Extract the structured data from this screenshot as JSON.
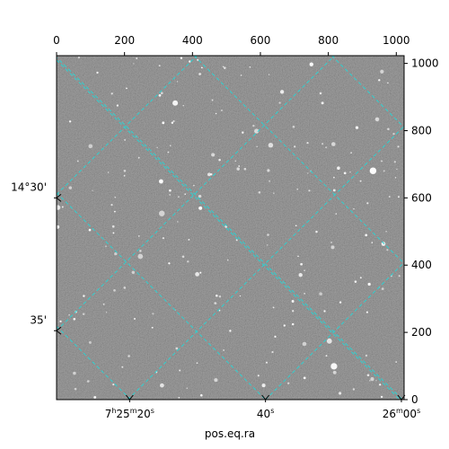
{
  "chart_data": {
    "type": "sky-image",
    "image": {
      "kind": "astronomical-grayscale-star-field",
      "background": "#7a7a7a",
      "star_color": "#ffffff",
      "grid_color": "#2fd0d0"
    },
    "grid": true,
    "xlabel": "pos.eq.ra",
    "pixel_axes": {
      "x": {
        "range": [
          0,
          1023
        ],
        "ticks": [
          {
            "value": 0,
            "label": "0"
          },
          {
            "value": 200,
            "label": "200"
          },
          {
            "value": 400,
            "label": "400"
          },
          {
            "value": 600,
            "label": "600"
          },
          {
            "value": 800,
            "label": "800"
          },
          {
            "value": 1000,
            "label": "1000"
          }
        ]
      },
      "y": {
        "range": [
          0,
          1023
        ],
        "ticks": [
          {
            "value": 0,
            "label": "0"
          },
          {
            "value": 200,
            "label": "200"
          },
          {
            "value": 400,
            "label": "400"
          },
          {
            "value": 600,
            "label": "600"
          },
          {
            "value": 800,
            "label": "800"
          },
          {
            "value": 1000,
            "label": "1000"
          }
        ]
      }
    },
    "world_axes": {
      "ra": {
        "ticks": [
          {
            "x": 215,
            "parts": [
              {
                "t": "7"
              },
              {
                "t": "h",
                "sup": true
              },
              {
                "t": "25"
              },
              {
                "t": "m",
                "sup": true
              },
              {
                "t": "20"
              },
              {
                "t": "s",
                "sup": true
              }
            ]
          },
          {
            "x": 615,
            "parts": [
              {
                "t": "40"
              },
              {
                "t": "s",
                "sup": true
              }
            ]
          },
          {
            "x": 1015,
            "parts": [
              {
                "t": "26"
              },
              {
                "t": "m",
                "sup": true
              },
              {
                "t": "00"
              },
              {
                "t": "s",
                "sup": true
              }
            ]
          }
        ]
      },
      "dec": {
        "ticks": [
          {
            "y": 600,
            "label": "14°30'"
          },
          {
            "y": 205,
            "label": "35'"
          }
        ]
      }
    },
    "grid_lines": [
      [
        [
          0,
          1010
        ],
        [
          1023,
          -13
        ]
      ],
      [
        [
          0,
          615
        ],
        [
          615,
          0
        ]
      ],
      [
        [
          0,
          218
        ],
        [
          218,
          0
        ]
      ],
      [
        [
          405,
          1023
        ],
        [
          1023,
          405
        ]
      ],
      [
        [
          810,
          1023
        ],
        [
          1023,
          810
        ]
      ],
      [
        [
          -5,
          1023
        ],
        [
          1023,
          -5
        ]
      ],
      [
        [
          0,
          610
        ],
        [
          413,
          1023
        ]
      ],
      [
        [
          0,
          205
        ],
        [
          818,
          1023
        ]
      ],
      [
        [
          210,
          0
        ],
        [
          1023,
          813
        ]
      ],
      [
        [
          615,
          0
        ],
        [
          1023,
          408
        ]
      ]
    ]
  }
}
